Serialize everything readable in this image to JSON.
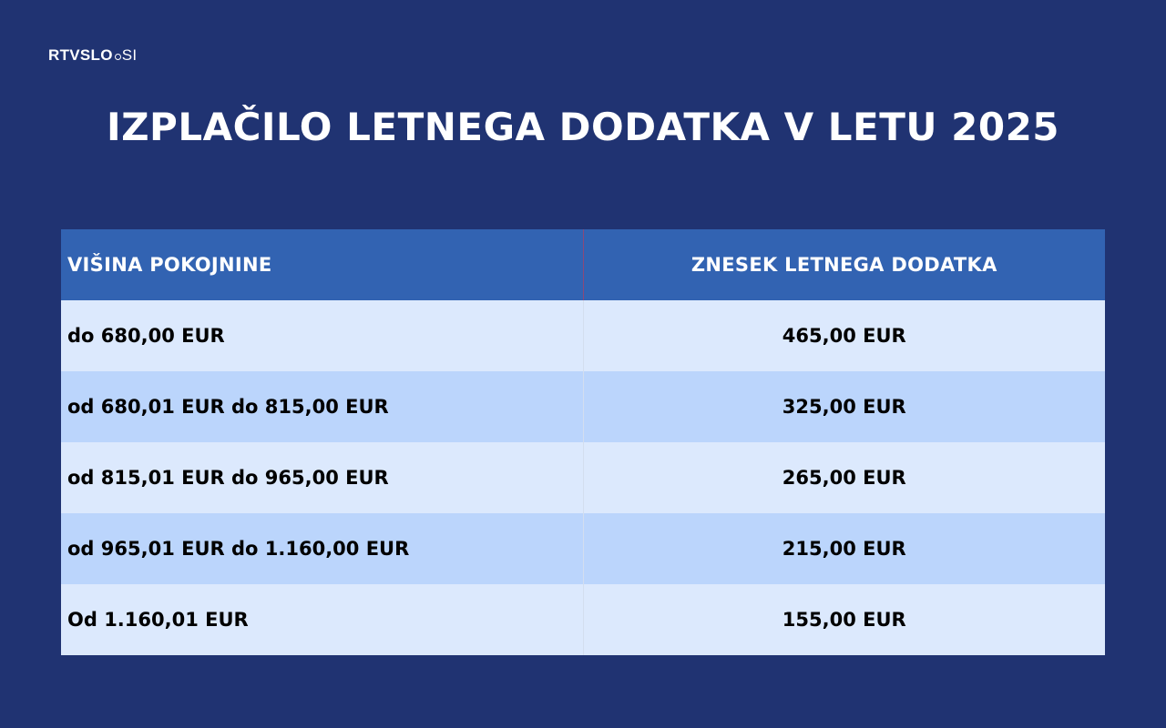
{
  "logo": {
    "brand": "RTVSLO",
    "tld": "SI"
  },
  "title": "IZPLAČILO LETNEGA DODATKA V LETU 2025",
  "table": {
    "headers": [
      "VIŠINA POKOJNINE",
      "ZNESEK LETNEGA DODATKA"
    ],
    "rows": [
      [
        "do 680,00 EUR",
        "465,00 EUR"
      ],
      [
        "od 680,01 EUR do 815,00 EUR",
        "325,00 EUR"
      ],
      [
        "od 815,01 EUR do 965,00 EUR",
        "265,00 EUR"
      ],
      [
        "od 965,01 EUR do 1.160,00 EUR",
        "215,00 EUR"
      ],
      [
        "Od 1.160,01 EUR",
        "155,00 EUR"
      ]
    ]
  },
  "colors": {
    "background": "#203372",
    "header_row": "#3263b2",
    "row_light": "#dce9fd",
    "row_dark": "#bbd5fc"
  }
}
